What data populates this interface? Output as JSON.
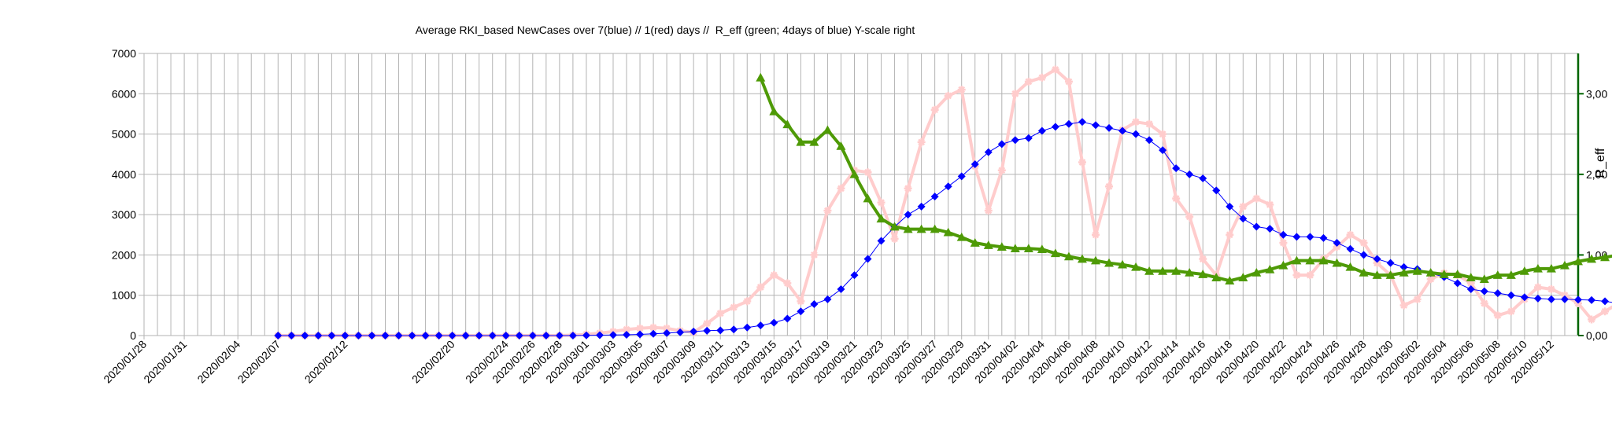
{
  "chart_data": {
    "type": "line",
    "title": "Average RKI_based NewCases over 7(blue) // 1(red) days //  R_eff (green; 4days of blue) Y-scale right",
    "xlabel": "",
    "ylabel": "",
    "ylabel_right": "R_eff",
    "ylim": [
      0,
      7000
    ],
    "ylim_right": [
      0,
      3.5
    ],
    "yticks": [
      "0",
      "1000",
      "2000",
      "3000",
      "4000",
      "5000",
      "6000",
      "7000"
    ],
    "yticks_right": [
      "0,00",
      "1,00",
      "2,00",
      "3,00"
    ],
    "x_start": "2020-01-28",
    "x_end": "2020-05-14",
    "xtick_labels": [
      "2020/01/28",
      "2020/01/31",
      "2020/02/04",
      "2020/02/07",
      "2020/02/12",
      "2020/02/20",
      "2020/02/24",
      "2020/02/26",
      "2020/02/28",
      "2020/03/01",
      "2020/03/03",
      "2020/03/05",
      "2020/03/07",
      "2020/03/09",
      "2020/03/11",
      "2020/03/13",
      "2020/03/15",
      "2020/03/17",
      "2020/03/19",
      "2020/03/21",
      "2020/03/23",
      "2020/03/25",
      "2020/03/27",
      "2020/03/29",
      "2020/03/31",
      "2020/04/02",
      "2020/04/04",
      "2020/04/06",
      "2020/04/08",
      "2020/04/10",
      "2020/04/12",
      "2020/04/14",
      "2020/04/16",
      "2020/04/18",
      "2020/04/20",
      "2020/04/22",
      "2020/04/24",
      "2020/04/26",
      "2020/04/28",
      "2020/04/30",
      "2020/05/02",
      "2020/05/04",
      "2020/05/06",
      "2020/05/08",
      "2020/05/10",
      "2020/05/12"
    ],
    "grid": true,
    "legend": "none",
    "series": [
      {
        "axis": "left",
        "color": "#0000ff",
        "marker": "diamond",
        "x_start": "2020-02-07",
        "values": [
          0,
          0,
          0,
          0,
          0,
          0,
          0,
          0,
          0,
          0,
          0,
          0,
          0,
          0,
          0,
          0,
          0,
          0,
          0,
          0,
          0,
          0,
          0,
          5,
          10,
          15,
          20,
          30,
          45,
          60,
          80,
          100,
          120,
          130,
          150,
          200,
          250,
          320,
          420,
          600,
          780,
          900,
          1150,
          1500,
          1900,
          2350,
          2700,
          3000,
          3200,
          3450,
          3700,
          3950,
          4250,
          4550,
          4750,
          4850,
          4900,
          5080,
          5180,
          5250,
          5300,
          5220,
          5150,
          5080,
          5000,
          4850,
          4600,
          4150,
          4000,
          3900,
          3600,
          3200,
          2900,
          2700,
          2650,
          2500,
          2450,
          2450,
          2420,
          2300,
          2150,
          2000,
          1900,
          1800,
          1700,
          1650,
          1550,
          1450,
          1300,
          1150,
          1100,
          1050,
          1000,
          950,
          920,
          900,
          900,
          890,
          880,
          850,
          800,
          700
        ]
      },
      {
        "axis": "left",
        "color": "#ffcccc",
        "marker": "star",
        "x_start": "2020-02-07",
        "values": [
          0,
          0,
          0,
          0,
          0,
          0,
          0,
          0,
          0,
          0,
          0,
          0,
          0,
          0,
          0,
          0,
          0,
          0,
          0,
          0,
          0,
          0,
          10,
          30,
          60,
          100,
          150,
          180,
          200,
          180,
          120,
          80,
          300,
          550,
          700,
          850,
          1200,
          1500,
          1300,
          850,
          2000,
          3100,
          3650,
          4100,
          4050,
          3300,
          2400,
          3650,
          4800,
          5600,
          5950,
          6100,
          4200,
          3100,
          4100,
          6000,
          6300,
          6400,
          6600,
          6300,
          4300,
          2500,
          3700,
          5100,
          5300,
          5250,
          5000,
          3400,
          2950,
          1900,
          1500,
          2500,
          3200,
          3400,
          3250,
          2300,
          1500,
          1500,
          1900,
          2200,
          2500,
          2300,
          1800,
          1500,
          750,
          900,
          1400,
          1550,
          1500,
          1300,
          800,
          500,
          600,
          900,
          1200,
          1150,
          1000,
          800,
          400,
          600,
          800,
          450
        ]
      },
      {
        "axis": "right",
        "color": "#4e9a06",
        "marker": "triangle",
        "x_start": "2020-03-14",
        "values": [
          3.2,
          2.78,
          2.62,
          2.4,
          2.4,
          2.55,
          2.35,
          2.0,
          1.7,
          1.45,
          1.35,
          1.32,
          1.32,
          1.32,
          1.28,
          1.22,
          1.15,
          1.12,
          1.1,
          1.08,
          1.08,
          1.07,
          1.02,
          0.98,
          0.95,
          0.93,
          0.9,
          0.88,
          0.85,
          0.8,
          0.8,
          0.8,
          0.78,
          0.76,
          0.72,
          0.68,
          0.72,
          0.78,
          0.82,
          0.87,
          0.93,
          0.93,
          0.93,
          0.9,
          0.85,
          0.78,
          0.75,
          0.75,
          0.78,
          0.8,
          0.78,
          0.76,
          0.76,
          0.72,
          0.7,
          0.75,
          0.75,
          0.8,
          0.83,
          0.83,
          0.87,
          0.92,
          0.95,
          0.97,
          1.0,
          0.93,
          0.8
        ]
      }
    ]
  }
}
